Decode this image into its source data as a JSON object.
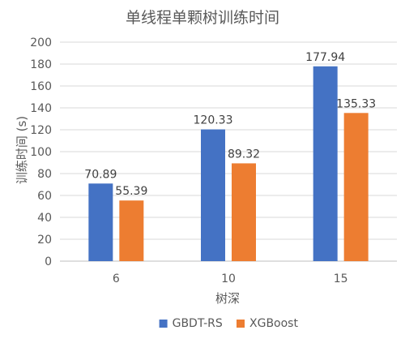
{
  "chart_data": {
    "type": "bar",
    "title": "单线程单颗树训练时间",
    "xlabel": "树深",
    "ylabel": "训练时间 (s)",
    "categories": [
      "6",
      "10",
      "15"
    ],
    "series": [
      {
        "name": "GBDT-RS",
        "values": [
          70.89,
          120.33,
          177.94
        ],
        "labels": [
          "70.89",
          "120.33",
          "177.94"
        ],
        "color": "#4472c4"
      },
      {
        "name": "XGBoost",
        "values": [
          55.39,
          89.32,
          135.33
        ],
        "labels": [
          "55.39",
          "89.32",
          "135.33"
        ],
        "color": "#ed7d31"
      }
    ],
    "ylim": [
      0,
      200
    ],
    "yticks": [
      "0",
      "20",
      "40",
      "60",
      "80",
      "100",
      "120",
      "140",
      "160",
      "180",
      "200"
    ],
    "grid": true,
    "legend_position": "bottom"
  }
}
